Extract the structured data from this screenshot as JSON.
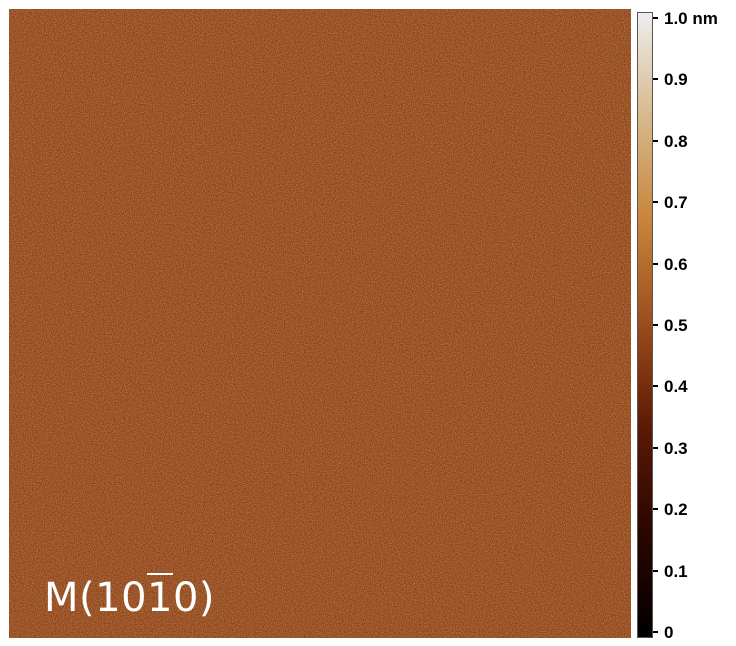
{
  "image": {
    "base_color": "#8a3f17",
    "label_prefix": "M(10",
    "label_overbar": "1",
    "label_suffix": "0)"
  },
  "colorbar": {
    "gradient": [
      "#000000",
      "#2a0600",
      "#5c1805",
      "#9a4c1c",
      "#c8843a",
      "#d7b88b",
      "#eeeeee"
    ],
    "ticks": [
      {
        "label": "1.0 nm",
        "value": 1.0
      },
      {
        "label": "0.9",
        "value": 0.9
      },
      {
        "label": "0.8",
        "value": 0.8
      },
      {
        "label": "0.7",
        "value": 0.7
      },
      {
        "label": "0.6",
        "value": 0.6
      },
      {
        "label": "0.5",
        "value": 0.5
      },
      {
        "label": "0.4",
        "value": 0.4
      },
      {
        "label": "0.3",
        "value": 0.3
      },
      {
        "label": "0.2",
        "value": 0.2
      },
      {
        "label": "0.1",
        "value": 0.1
      },
      {
        "label": "0",
        "value": 0
      }
    ]
  }
}
